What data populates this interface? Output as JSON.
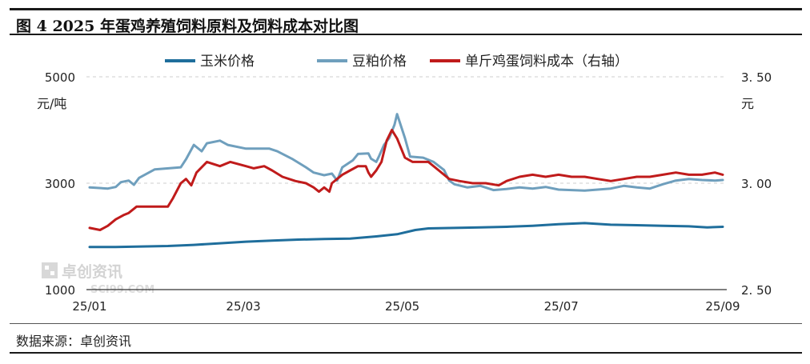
{
  "title": "图 4 2025 年蛋鸡养殖饲料原料及饲料成本对比图",
  "source": "数据来源：卓创资讯",
  "watermark": {
    "name": "卓创资讯",
    "domain": "SCI99.COM"
  },
  "chart_data": {
    "type": "line",
    "left_axis": {
      "unit": "元/吨",
      "ylim": [
        1000,
        5000
      ],
      "ticks": [
        1000,
        3000,
        5000
      ]
    },
    "right_axis": {
      "unit": "元",
      "ylim": [
        2.5,
        3.5
      ],
      "ticks": [
        "2. 50",
        "3. 00",
        "3. 50"
      ],
      "tick_values": [
        2.5,
        3.0,
        3.5
      ]
    },
    "x_ticks": [
      {
        "label": "25/01",
        "day": 0
      },
      {
        "label": "25/03",
        "day": 59
      },
      {
        "label": "25/05",
        "day": 120
      },
      {
        "label": "25/07",
        "day": 181
      },
      {
        "label": "25/09",
        "day": 243
      }
    ],
    "grid": "dashed-horizontal",
    "legend_position": "top",
    "series": [
      {
        "name": "玉米价格",
        "axis": "left",
        "color": "#1f6e9c",
        "points": [
          [
            0,
            1800
          ],
          [
            10,
            1800
          ],
          [
            20,
            1810
          ],
          [
            30,
            1820
          ],
          [
            40,
            1840
          ],
          [
            50,
            1870
          ],
          [
            60,
            1900
          ],
          [
            70,
            1920
          ],
          [
            80,
            1940
          ],
          [
            90,
            1950
          ],
          [
            100,
            1960
          ],
          [
            110,
            2000
          ],
          [
            118,
            2040
          ],
          [
            125,
            2120
          ],
          [
            130,
            2150
          ],
          [
            140,
            2160
          ],
          [
            150,
            2170
          ],
          [
            160,
            2180
          ],
          [
            170,
            2200
          ],
          [
            180,
            2230
          ],
          [
            190,
            2250
          ],
          [
            200,
            2220
          ],
          [
            210,
            2210
          ],
          [
            220,
            2200
          ],
          [
            230,
            2190
          ],
          [
            237,
            2170
          ],
          [
            243,
            2180
          ]
        ]
      },
      {
        "name": "豆粕价格",
        "axis": "left",
        "color": "#6f9fbd",
        "points": [
          [
            0,
            2920
          ],
          [
            7,
            2900
          ],
          [
            10,
            2930
          ],
          [
            12,
            3020
          ],
          [
            15,
            3050
          ],
          [
            17,
            2970
          ],
          [
            19,
            3100
          ],
          [
            25,
            3260
          ],
          [
            35,
            3300
          ],
          [
            37,
            3450
          ],
          [
            40,
            3720
          ],
          [
            43,
            3600
          ],
          [
            45,
            3750
          ],
          [
            50,
            3800
          ],
          [
            53,
            3720
          ],
          [
            60,
            3650
          ],
          [
            65,
            3650
          ],
          [
            69,
            3650
          ],
          [
            72,
            3600
          ],
          [
            78,
            3450
          ],
          [
            83,
            3300
          ],
          [
            86,
            3200
          ],
          [
            90,
            3150
          ],
          [
            93,
            3180
          ],
          [
            95,
            3050
          ],
          [
            97,
            3300
          ],
          [
            101,
            3430
          ],
          [
            103,
            3550
          ],
          [
            107,
            3560
          ],
          [
            108,
            3460
          ],
          [
            110,
            3400
          ],
          [
            111,
            3500
          ],
          [
            113,
            3720
          ],
          [
            115,
            3850
          ],
          [
            117,
            4100
          ],
          [
            118,
            4300
          ],
          [
            121,
            3850
          ],
          [
            123,
            3500
          ],
          [
            128,
            3480
          ],
          [
            132,
            3400
          ],
          [
            136,
            3250
          ],
          [
            138,
            3050
          ],
          [
            140,
            2980
          ],
          [
            145,
            2920
          ],
          [
            150,
            2950
          ],
          [
            155,
            2870
          ],
          [
            160,
            2890
          ],
          [
            165,
            2920
          ],
          [
            170,
            2900
          ],
          [
            175,
            2930
          ],
          [
            180,
            2880
          ],
          [
            185,
            2870
          ],
          [
            190,
            2860
          ],
          [
            195,
            2880
          ],
          [
            200,
            2900
          ],
          [
            205,
            2950
          ],
          [
            210,
            2920
          ],
          [
            215,
            2900
          ],
          [
            220,
            2980
          ],
          [
            225,
            3050
          ],
          [
            230,
            3080
          ],
          [
            235,
            3060
          ],
          [
            240,
            3050
          ],
          [
            243,
            3060
          ]
        ]
      },
      {
        "name": "单斤鸡蛋饲料成本（右轴）",
        "axis": "right",
        "color": "#c01b1b",
        "points": [
          [
            0,
            2.79
          ],
          [
            4,
            2.78
          ],
          [
            7,
            2.8
          ],
          [
            10,
            2.83
          ],
          [
            13,
            2.85
          ],
          [
            15,
            2.86
          ],
          [
            18,
            2.89
          ],
          [
            25,
            2.89
          ],
          [
            30,
            2.89
          ],
          [
            32,
            2.93
          ],
          [
            35,
            3.0
          ],
          [
            37,
            3.02
          ],
          [
            39,
            2.99
          ],
          [
            41,
            3.05
          ],
          [
            45,
            3.1
          ],
          [
            50,
            3.08
          ],
          [
            54,
            3.1
          ],
          [
            60,
            3.08
          ],
          [
            63,
            3.07
          ],
          [
            67,
            3.08
          ],
          [
            70,
            3.06
          ],
          [
            74,
            3.03
          ],
          [
            79,
            3.01
          ],
          [
            83,
            3.0
          ],
          [
            86,
            2.98
          ],
          [
            88,
            2.96
          ],
          [
            90,
            2.98
          ],
          [
            92,
            2.96
          ],
          [
            93,
            3.0
          ],
          [
            95,
            3.02
          ],
          [
            97,
            3.04
          ],
          [
            100,
            3.06
          ],
          [
            103,
            3.08
          ],
          [
            106,
            3.08
          ],
          [
            107,
            3.05
          ],
          [
            108,
            3.03
          ],
          [
            110,
            3.06
          ],
          [
            112,
            3.1
          ],
          [
            114,
            3.2
          ],
          [
            116,
            3.25
          ],
          [
            118,
            3.21
          ],
          [
            121,
            3.12
          ],
          [
            124,
            3.1
          ],
          [
            130,
            3.1
          ],
          [
            134,
            3.06
          ],
          [
            138,
            3.02
          ],
          [
            142,
            3.01
          ],
          [
            147,
            3.0
          ],
          [
            152,
            3.0
          ],
          [
            157,
            2.99
          ],
          [
            160,
            3.01
          ],
          [
            165,
            3.03
          ],
          [
            170,
            3.04
          ],
          [
            175,
            3.03
          ],
          [
            180,
            3.04
          ],
          [
            185,
            3.03
          ],
          [
            190,
            3.03
          ],
          [
            195,
            3.02
          ],
          [
            200,
            3.01
          ],
          [
            205,
            3.02
          ],
          [
            210,
            3.03
          ],
          [
            215,
            3.03
          ],
          [
            220,
            3.04
          ],
          [
            225,
            3.05
          ],
          [
            230,
            3.04
          ],
          [
            235,
            3.04
          ],
          [
            240,
            3.05
          ],
          [
            243,
            3.04
          ]
        ]
      }
    ]
  }
}
